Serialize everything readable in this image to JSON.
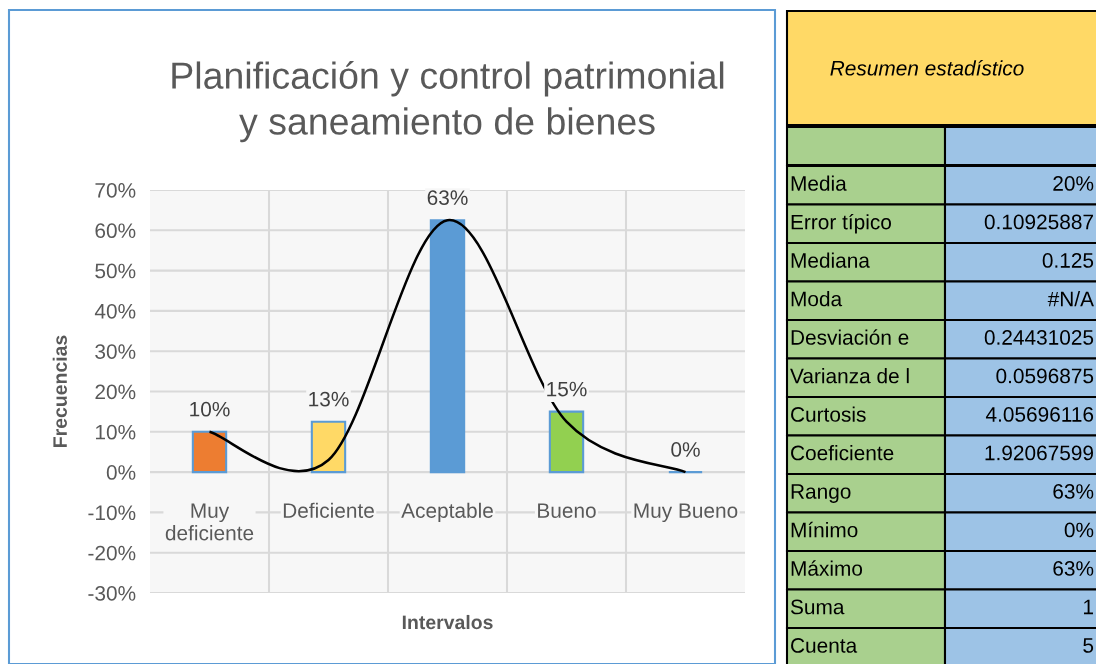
{
  "chart_data": [
    {
      "type": "bar",
      "title": "Planificación y control patrimonial\ny saneamiento de bienes",
      "xlabel": "Intervalos",
      "ylabel": "Frecuencias",
      "categories": [
        "Muy deficiente",
        "Deficiente",
        "Aceptable",
        "Bueno",
        "Muy Bueno"
      ],
      "series": [
        {
          "type": "bar",
          "values": [
            10,
            12.5,
            62.5,
            15,
            0
          ],
          "colors": [
            "#ed7d31",
            "#ffd966",
            "#5b9bd5",
            "#92d050",
            "#5b9bd5"
          ],
          "value_labels": [
            "10%",
            "13%",
            "63%",
            "15%",
            "0%"
          ]
        },
        {
          "type": "line",
          "color": "#000000",
          "values": [
            10,
            3,
            62.5,
            12.5,
            0
          ]
        }
      ],
      "ylim": [
        -30,
        70
      ],
      "yticks": [
        {
          "value": -30,
          "label": "-30%"
        },
        {
          "value": -20,
          "label": "-20%"
        },
        {
          "value": -10,
          "label": "-10%"
        },
        {
          "value": 0,
          "label": "0%"
        },
        {
          "value": 10,
          "label": "10%"
        },
        {
          "value": 20,
          "label": "20%"
        },
        {
          "value": 30,
          "label": "30%"
        },
        {
          "value": 40,
          "label": "40%"
        },
        {
          "value": 50,
          "label": "50%"
        },
        {
          "value": 60,
          "label": "60%"
        },
        {
          "value": 70,
          "label": "70%"
        }
      ],
      "grid": true
    },
    {
      "type": "other",
      "title": "Resumen estadístico",
      "categories": [
        "Media",
        "Error típico",
        "Mediana",
        "Moda",
        "Desviación e",
        "Varianza de l",
        "Curtosis",
        "Coeficiente ",
        "Rango",
        "Mínimo",
        "Máximo",
        "Suma",
        "Cuenta"
      ],
      "value_labels": [
        "20%",
        "0.10925887",
        "0.125",
        "#N/A",
        "0.24431025",
        "0.0596875",
        "4.05696116",
        "1.92067599",
        "63%",
        "0%",
        "63%",
        "1",
        "5"
      ]
    }
  ]
}
